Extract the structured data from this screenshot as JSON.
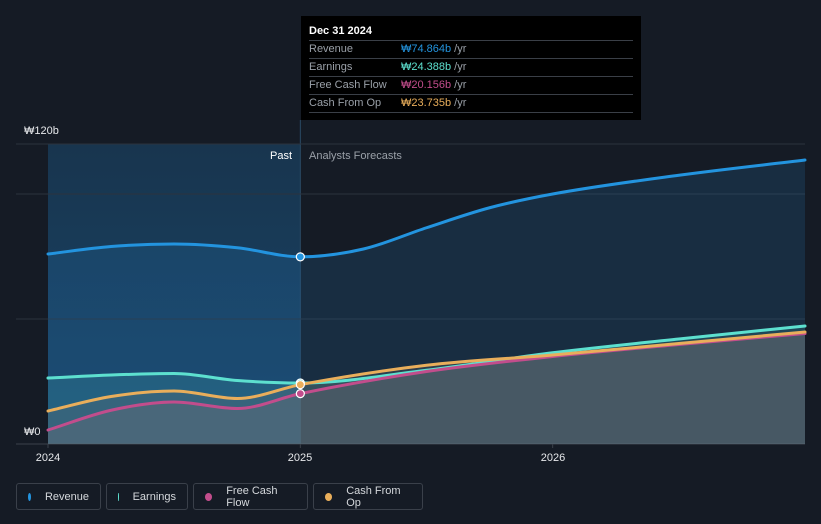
{
  "tooltip": {
    "date": "Dec 31 2024",
    "rows": [
      {
        "label": "Revenue",
        "value": "₩74.864b",
        "unit": "/yr",
        "color": "#2394df"
      },
      {
        "label": "Earnings",
        "value": "₩24.388b",
        "unit": "/yr",
        "color": "#5de0cf"
      },
      {
        "label": "Free Cash Flow",
        "value": "₩20.156b",
        "unit": "/yr",
        "color": "#c24d8c"
      },
      {
        "label": "Cash From Op",
        "value": "₩23.735b",
        "unit": "/yr",
        "color": "#e9ae5b"
      }
    ]
  },
  "regions": {
    "past": "Past",
    "forecast": "Analysts Forecasts"
  },
  "legend": [
    {
      "label": "Revenue",
      "color": "#2394df"
    },
    {
      "label": "Earnings",
      "color": "#5de0cf"
    },
    {
      "label": "Free Cash Flow",
      "color": "#c24d8c"
    },
    {
      "label": "Cash From Op",
      "color": "#e9ae5b"
    }
  ],
  "chart_data": {
    "type": "line",
    "title": "",
    "xlabel": "",
    "ylabel": "",
    "currency_unit": "₩ billions",
    "x_ticks": [
      "2024",
      "2025",
      "2026"
    ],
    "y_ticks": [
      "₩0",
      "₩120b"
    ],
    "xlim": [
      2024.0,
      2027.0
    ],
    "ylim": [
      0,
      120
    ],
    "grid_values": [
      0,
      50,
      100,
      120
    ],
    "past_until": 2025.0,
    "highlight_x": 2025.0,
    "series": [
      {
        "name": "Revenue",
        "color": "#2394df",
        "x": [
          2024.0,
          2024.25,
          2024.5,
          2024.75,
          2025.0,
          2025.25,
          2025.5,
          2025.75,
          2026.0,
          2026.5,
          2027.0
        ],
        "values": [
          76.0,
          79.0,
          80.0,
          78.5,
          74.864,
          78.0,
          86.5,
          94.5,
          100.0,
          107.5,
          113.6
        ]
      },
      {
        "name": "Earnings",
        "color": "#5de0cf",
        "x": [
          2024.0,
          2024.25,
          2024.5,
          2024.75,
          2025.0,
          2025.5,
          2026.0,
          2026.5,
          2027.0
        ],
        "values": [
          26.4,
          27.6,
          28.2,
          25.4,
          24.388,
          29.5,
          36.5,
          42.0,
          47.2
        ]
      },
      {
        "name": "Free Cash Flow",
        "color": "#c24d8c",
        "x": [
          2024.0,
          2024.25,
          2024.5,
          2024.75,
          2025.0,
          2025.5,
          2026.0,
          2026.5,
          2027.0
        ],
        "values": [
          5.6,
          13.5,
          16.8,
          14.2,
          20.156,
          29.0,
          35.0,
          39.8,
          44.2
        ]
      },
      {
        "name": "Cash From Op",
        "color": "#e9ae5b",
        "x": [
          2024.0,
          2024.25,
          2024.5,
          2024.75,
          2025.0,
          2025.5,
          2026.0,
          2026.5,
          2027.0
        ],
        "values": [
          13.2,
          19.0,
          21.2,
          18.2,
          23.735,
          31.5,
          35.6,
          40.2,
          44.8
        ]
      }
    ]
  }
}
